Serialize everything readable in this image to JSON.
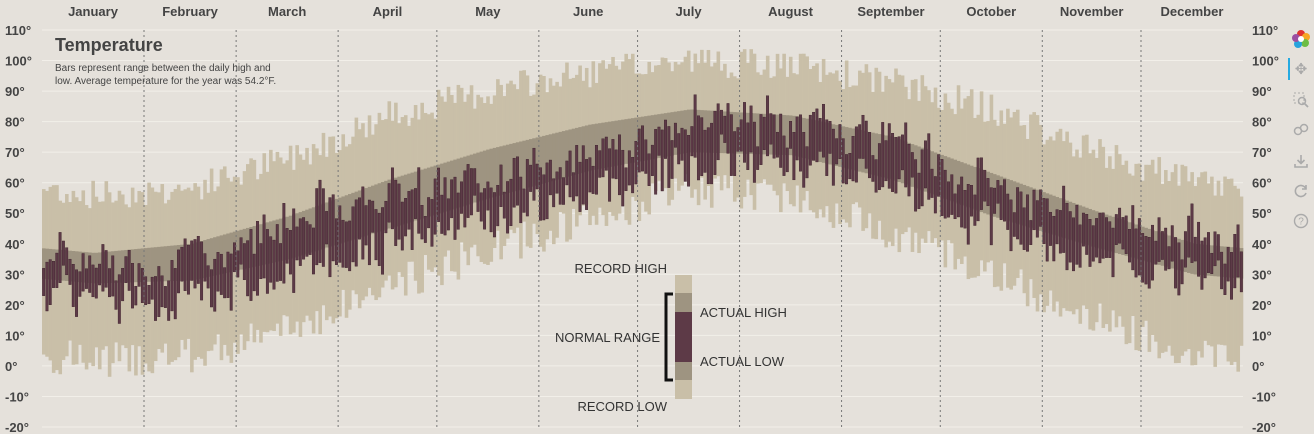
{
  "header": {
    "title": "Temperature",
    "subtitle": "Bars represent range between the daily high and low. Average temperature for the year was 54.2°F."
  },
  "legend": {
    "record_high": "RECORD HIGH",
    "record_low": "RECORD LOW",
    "normal_range": "NORMAL RANGE",
    "actual_high": "ACTUAL HIGH",
    "actual_low": "ACTUAL LOW"
  },
  "toolbar": {
    "icons": [
      "bokeh-logo-icon",
      "pan-icon",
      "box-zoom-icon",
      "wheel-zoom-icon",
      "save-icon",
      "reset-icon",
      "help-icon"
    ]
  },
  "colors": {
    "background": "#e5e1db",
    "record": "#c9bfa8",
    "normal": "#9e9481",
    "actual": "#5d3a47",
    "actual_edge": "#3a1e2a"
  },
  "chart_data": {
    "type": "bar",
    "months": [
      "January",
      "February",
      "March",
      "April",
      "May",
      "June",
      "July",
      "August",
      "September",
      "October",
      "November",
      "December"
    ],
    "y_ticks": [
      "110°",
      "100°",
      "90°",
      "80°",
      "70°",
      "60°",
      "50°",
      "40°",
      "30°",
      "20°",
      "10°",
      "0°",
      "-10°",
      "-20°"
    ],
    "y_tick_values": [
      110,
      100,
      90,
      80,
      70,
      60,
      50,
      40,
      30,
      20,
      10,
      0,
      -10,
      -20
    ],
    "ylim": [
      -20,
      110
    ],
    "grid": "horizontal",
    "month_avg_record_high": [
      56,
      58,
      68,
      82,
      90,
      96,
      100,
      98,
      93,
      84,
      70,
      60
    ],
    "month_avg_record_low": [
      2,
      3,
      12,
      26,
      38,
      48,
      58,
      56,
      44,
      30,
      16,
      4
    ],
    "month_normal_high": [
      37,
      40,
      49,
      61,
      71,
      79,
      84,
      82,
      75,
      63,
      51,
      40
    ],
    "month_normal_low": [
      27,
      28,
      35,
      45,
      55,
      64,
      70,
      69,
      61,
      49,
      39,
      30
    ],
    "month_avg_actual_high": [
      33,
      35,
      50,
      58,
      62,
      70,
      82,
      80,
      74,
      60,
      50,
      44
    ],
    "month_avg_actual_low": [
      22,
      22,
      30,
      40,
      48,
      56,
      66,
      66,
      58,
      45,
      34,
      30
    ],
    "day_count": 365
  }
}
